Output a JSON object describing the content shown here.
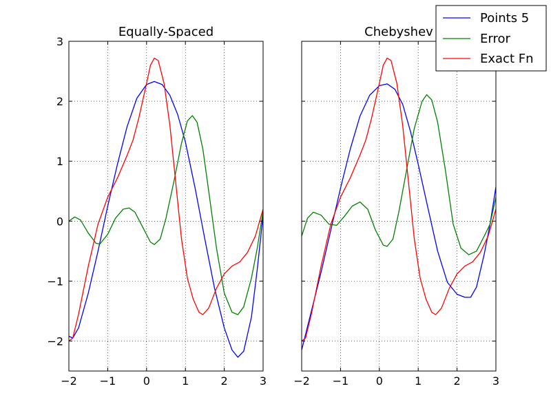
{
  "chart_data": [
    {
      "type": "line",
      "title": "Equally-Spaced",
      "xlabel": "",
      "ylabel": "",
      "xlim": [
        -2,
        3
      ],
      "ylim": [
        -2.5,
        3
      ],
      "xticks": [
        -2,
        -1,
        0,
        1,
        2,
        3
      ],
      "yticks": [
        -2,
        -1,
        0,
        1,
        2,
        3
      ],
      "xtick_labels": [
        "−2",
        "−1",
        "0",
        "1",
        "2",
        "3"
      ],
      "ytick_labels": [
        "−2",
        "−1",
        "0",
        "1",
        "2",
        "3"
      ],
      "show_ytick_labels": true,
      "grid": true,
      "series": [
        {
          "name": "Points 5",
          "color": "#0000ff",
          "points": [
            [
              -2.0,
              -1.92
            ],
            [
              -1.9,
              -1.95
            ],
            [
              -1.75,
              -1.78
            ],
            [
              -1.5,
              -1.2
            ],
            [
              -1.25,
              -0.5
            ],
            [
              -1.0,
              0.25
            ],
            [
              -0.75,
              0.95
            ],
            [
              -0.5,
              1.58
            ],
            [
              -0.25,
              2.05
            ],
            [
              0.0,
              2.28
            ],
            [
              0.2,
              2.33
            ],
            [
              0.4,
              2.28
            ],
            [
              0.6,
              2.1
            ],
            [
              0.8,
              1.78
            ],
            [
              1.0,
              1.32
            ],
            [
              1.25,
              0.55
            ],
            [
              1.5,
              -0.3
            ],
            [
              1.75,
              -1.12
            ],
            [
              2.0,
              -1.78
            ],
            [
              2.2,
              -2.15
            ],
            [
              2.35,
              -2.27
            ],
            [
              2.5,
              -2.17
            ],
            [
              2.7,
              -1.6
            ],
            [
              2.85,
              -0.8
            ],
            [
              3.0,
              0.1
            ]
          ]
        },
        {
          "name": "Error",
          "color": "#008000",
          "points": [
            [
              -2.0,
              0.0
            ],
            [
              -1.85,
              0.07
            ],
            [
              -1.7,
              0.02
            ],
            [
              -1.5,
              -0.2
            ],
            [
              -1.3,
              -0.37
            ],
            [
              -1.2,
              -0.38
            ],
            [
              -1.0,
              -0.22
            ],
            [
              -0.8,
              0.05
            ],
            [
              -0.6,
              0.2
            ],
            [
              -0.45,
              0.22
            ],
            [
              -0.3,
              0.15
            ],
            [
              -0.1,
              -0.1
            ],
            [
              0.1,
              -0.35
            ],
            [
              0.2,
              -0.39
            ],
            [
              0.35,
              -0.3
            ],
            [
              0.5,
              0.05
            ],
            [
              0.7,
              0.65
            ],
            [
              0.9,
              1.3
            ],
            [
              1.05,
              1.67
            ],
            [
              1.18,
              1.76
            ],
            [
              1.3,
              1.65
            ],
            [
              1.45,
              1.2
            ],
            [
              1.6,
              0.5
            ],
            [
              1.8,
              -0.45
            ],
            [
              2.0,
              -1.2
            ],
            [
              2.2,
              -1.52
            ],
            [
              2.35,
              -1.56
            ],
            [
              2.5,
              -1.43
            ],
            [
              2.7,
              -0.95
            ],
            [
              2.85,
              -0.45
            ],
            [
              3.0,
              0.17
            ]
          ]
        },
        {
          "name": "Exact Fn",
          "color": "#ff0000",
          "points": [
            [
              -2.0,
              -2.0
            ],
            [
              -1.9,
              -1.95
            ],
            [
              -1.75,
              -1.55
            ],
            [
              -1.5,
              -0.75
            ],
            [
              -1.25,
              -0.05
            ],
            [
              -1.0,
              0.4
            ],
            [
              -0.75,
              0.72
            ],
            [
              -0.5,
              1.1
            ],
            [
              -0.35,
              1.35
            ],
            [
              -0.2,
              1.72
            ],
            [
              0.0,
              2.3
            ],
            [
              0.1,
              2.6
            ],
            [
              0.2,
              2.72
            ],
            [
              0.3,
              2.68
            ],
            [
              0.45,
              2.3
            ],
            [
              0.6,
              1.6
            ],
            [
              0.75,
              0.65
            ],
            [
              0.9,
              -0.3
            ],
            [
              1.05,
              -0.95
            ],
            [
              1.2,
              -1.3
            ],
            [
              1.35,
              -1.52
            ],
            [
              1.45,
              -1.56
            ],
            [
              1.6,
              -1.45
            ],
            [
              1.8,
              -1.12
            ],
            [
              2.0,
              -0.88
            ],
            [
              2.2,
              -0.75
            ],
            [
              2.4,
              -0.68
            ],
            [
              2.6,
              -0.52
            ],
            [
              2.8,
              -0.25
            ],
            [
              3.0,
              0.2
            ]
          ]
        }
      ]
    },
    {
      "type": "line",
      "title": "Chebyshev",
      "xlabel": "",
      "ylabel": "",
      "xlim": [
        -2,
        3
      ],
      "ylim": [
        -2.5,
        3
      ],
      "xticks": [
        -2,
        -1,
        0,
        1,
        2,
        3
      ],
      "yticks": [
        -2,
        -1,
        0,
        1,
        2,
        3
      ],
      "xtick_labels": [
        "−2",
        "−1",
        "0",
        "1",
        "2",
        "3"
      ],
      "ytick_labels": [
        "",
        "",
        "",
        "",
        "",
        ""
      ],
      "show_ytick_labels": false,
      "grid": true,
      "series": [
        {
          "name": "Points 5",
          "color": "#0000ff",
          "points": [
            [
              -2.0,
              -2.15
            ],
            [
              -1.75,
              -1.5
            ],
            [
              -1.5,
              -0.85
            ],
            [
              -1.25,
              -0.15
            ],
            [
              -1.0,
              0.55
            ],
            [
              -0.75,
              1.2
            ],
            [
              -0.5,
              1.75
            ],
            [
              -0.25,
              2.1
            ],
            [
              0.0,
              2.26
            ],
            [
              0.2,
              2.29
            ],
            [
              0.4,
              2.2
            ],
            [
              0.6,
              1.95
            ],
            [
              0.8,
              1.5
            ],
            [
              1.0,
              0.95
            ],
            [
              1.25,
              0.22
            ],
            [
              1.5,
              -0.5
            ],
            [
              1.75,
              -1.02
            ],
            [
              2.0,
              -1.22
            ],
            [
              2.2,
              -1.27
            ],
            [
              2.35,
              -1.27
            ],
            [
              2.5,
              -1.1
            ],
            [
              2.7,
              -0.55
            ],
            [
              2.85,
              -0.05
            ],
            [
              3.0,
              0.57
            ]
          ]
        },
        {
          "name": "Error",
          "color": "#008000",
          "points": [
            [
              -2.0,
              -0.25
            ],
            [
              -1.85,
              0.05
            ],
            [
              -1.7,
              0.15
            ],
            [
              -1.5,
              0.1
            ],
            [
              -1.3,
              -0.05
            ],
            [
              -1.1,
              -0.07
            ],
            [
              -0.9,
              0.08
            ],
            [
              -0.7,
              0.25
            ],
            [
              -0.5,
              0.32
            ],
            [
              -0.3,
              0.2
            ],
            [
              -0.1,
              -0.15
            ],
            [
              0.1,
              -0.4
            ],
            [
              0.2,
              -0.42
            ],
            [
              0.35,
              -0.3
            ],
            [
              0.5,
              0.15
            ],
            [
              0.7,
              0.85
            ],
            [
              0.9,
              1.55
            ],
            [
              1.1,
              2.0
            ],
            [
              1.22,
              2.11
            ],
            [
              1.35,
              2.02
            ],
            [
              1.5,
              1.65
            ],
            [
              1.7,
              0.85
            ],
            [
              1.9,
              -0.05
            ],
            [
              2.1,
              -0.45
            ],
            [
              2.3,
              -0.56
            ],
            [
              2.5,
              -0.5
            ],
            [
              2.7,
              -0.25
            ],
            [
              2.85,
              -0.05
            ],
            [
              3.0,
              0.4
            ]
          ]
        },
        {
          "name": "Exact Fn",
          "color": "#ff0000",
          "points": [
            [
              -2.0,
              -2.0
            ],
            [
              -1.9,
              -1.95
            ],
            [
              -1.75,
              -1.55
            ],
            [
              -1.5,
              -0.75
            ],
            [
              -1.25,
              -0.05
            ],
            [
              -1.0,
              0.4
            ],
            [
              -0.75,
              0.72
            ],
            [
              -0.5,
              1.1
            ],
            [
              -0.35,
              1.35
            ],
            [
              -0.2,
              1.72
            ],
            [
              0.0,
              2.3
            ],
            [
              0.1,
              2.6
            ],
            [
              0.2,
              2.72
            ],
            [
              0.3,
              2.68
            ],
            [
              0.45,
              2.3
            ],
            [
              0.6,
              1.6
            ],
            [
              0.75,
              0.65
            ],
            [
              0.9,
              -0.3
            ],
            [
              1.05,
              -0.95
            ],
            [
              1.2,
              -1.3
            ],
            [
              1.35,
              -1.52
            ],
            [
              1.45,
              -1.56
            ],
            [
              1.6,
              -1.45
            ],
            [
              1.8,
              -1.12
            ],
            [
              2.0,
              -0.88
            ],
            [
              2.2,
              -0.75
            ],
            [
              2.4,
              -0.68
            ],
            [
              2.6,
              -0.52
            ],
            [
              2.8,
              -0.25
            ],
            [
              3.0,
              0.2
            ]
          ]
        }
      ]
    }
  ],
  "legend": {
    "placement": "top-right",
    "entries": [
      {
        "label": "Points 5",
        "color": "#0000ff"
      },
      {
        "label": "Error",
        "color": "#008000"
      },
      {
        "label": "Exact Fn",
        "color": "#ff0000"
      }
    ]
  }
}
